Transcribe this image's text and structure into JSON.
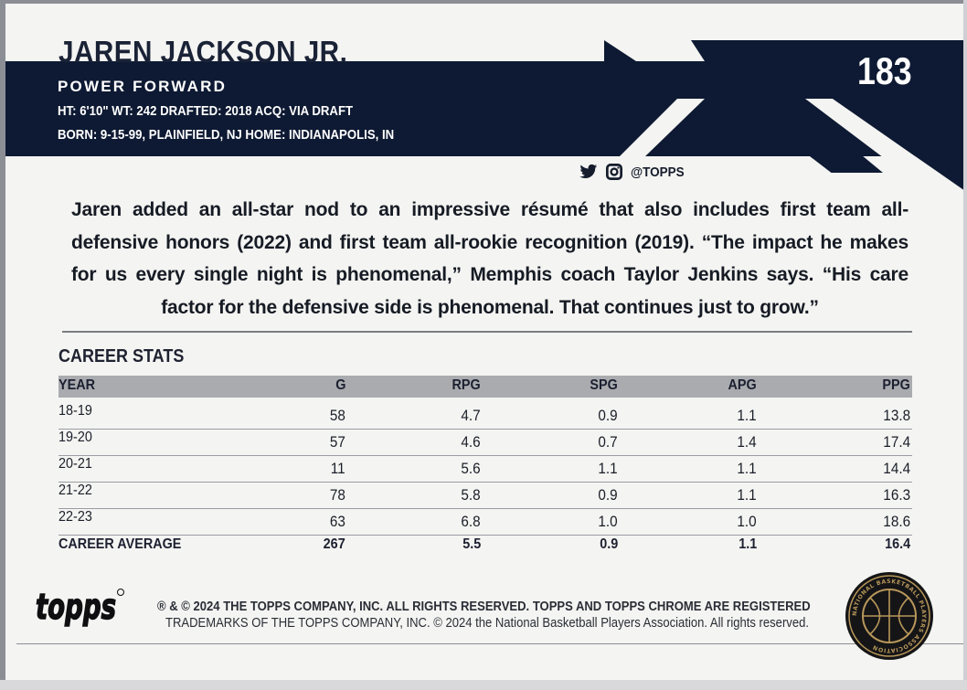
{
  "player": {
    "name": "JAREN JACKSON JR.",
    "position": "POWER FORWARD",
    "bio_line_1": "HT: 6'10\"  WT: 242  DRAFTED: 2018  ACQ: VIA DRAFT",
    "bio_line_2": "BORN: 9-15-99, PLAINFIELD, NJ  HOME: INDIANAPOLIS, IN"
  },
  "card_number": "183",
  "social": {
    "handle": "@TOPPS",
    "icons": [
      "twitter-icon",
      "instagram-icon"
    ]
  },
  "bio": "Jaren added an all-star nod to an impressive résumé that also includes first team all-defensive honors (2022) and first team all-rookie recognition (2019). “The impact he makes for us every single night is phenomenal,” Memphis coach Taylor Jenkins says. “His care factor for the defensive side is phenomenal. That continues just to grow.”",
  "stats": {
    "title": "CAREER STATS",
    "headers": [
      "YEAR",
      "G",
      "RPG",
      "SPG",
      "APG",
      "PPG"
    ],
    "rows": [
      [
        "18-19",
        "58",
        "4.7",
        "0.9",
        "1.1",
        "13.8"
      ],
      [
        "19-20",
        "57",
        "4.6",
        "0.7",
        "1.4",
        "17.4"
      ],
      [
        "20-21",
        "11",
        "5.6",
        "1.1",
        "1.1",
        "14.4"
      ],
      [
        "21-22",
        "78",
        "5.8",
        "0.9",
        "1.1",
        "16.3"
      ],
      [
        "22-23",
        "63",
        "6.8",
        "1.0",
        "1.0",
        "18.6"
      ]
    ],
    "totals": [
      "CAREER AVERAGE",
      "267",
      "5.5",
      "0.9",
      "1.1",
      "16.4"
    ]
  },
  "footer": {
    "line_1": "® & © 2024 THE TOPPS COMPANY, INC. ALL RIGHTS RESERVED. TOPPS AND TOPPS CHROME ARE REGISTERED",
    "line_2": "TRADEMARKS OF THE TOPPS COMPANY, INC. © 2024 the National Basketball Players Association. All rights reserved."
  },
  "logos": {
    "topps": "topps",
    "nbpa_text": "NATIONAL BASKETBALL PLAYERS ASSOCIATION"
  },
  "colors": {
    "navy": "#0e1a33",
    "card": "#f4f4f2",
    "header_gray": "#a9abaf",
    "gold": "#b8975a"
  }
}
